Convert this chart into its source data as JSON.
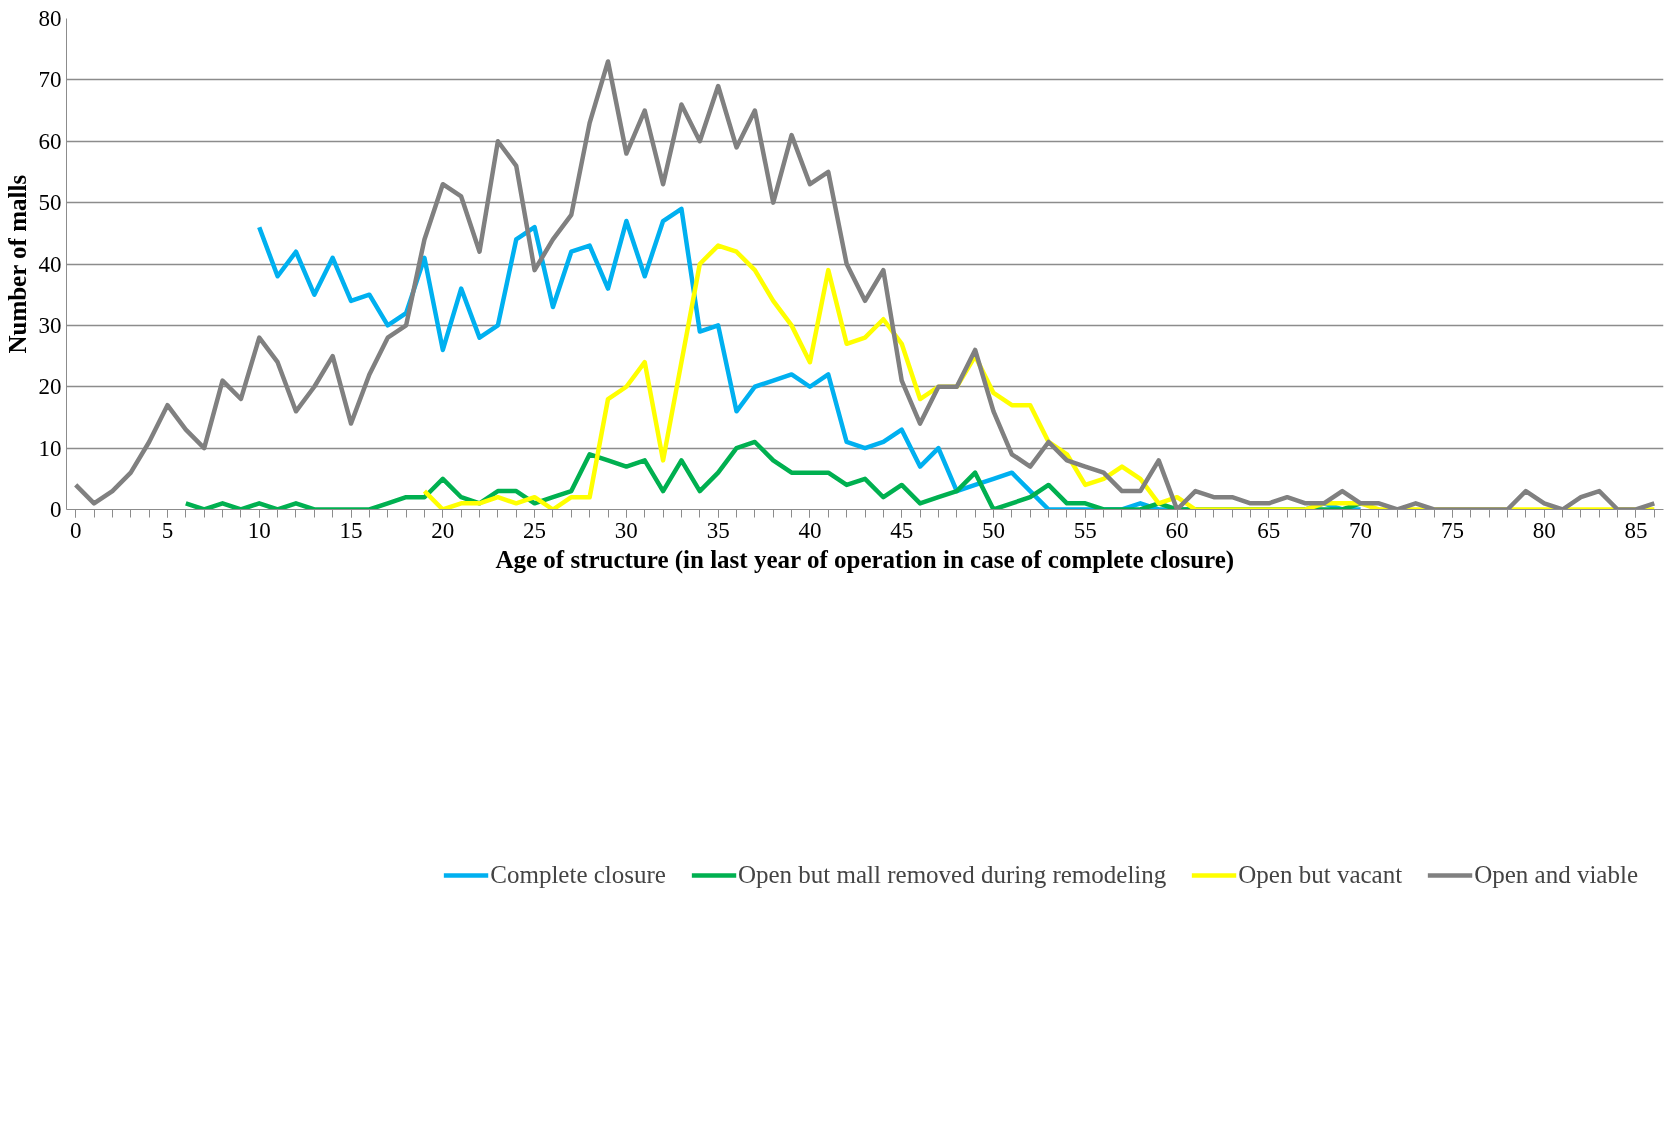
{
  "chart_data": {
    "type": "line",
    "xlabel": "Age of structure (in last year of operation in case of complete closure)",
    "ylabel": "Number of malls",
    "xlim": [
      -0.5,
      86.5
    ],
    "xticks": [
      0,
      5,
      10,
      15,
      20,
      25,
      30,
      35,
      40,
      45,
      50,
      55,
      60,
      65,
      70,
      75,
      80,
      85
    ],
    "ylim": [
      0,
      80
    ],
    "yticks": [
      0,
      10,
      20,
      30,
      40,
      50,
      60,
      70,
      80
    ],
    "grid": "y",
    "legend": "bottom",
    "marker": "none",
    "line_style": "solid",
    "series": [
      {
        "name": "Complete closure",
        "color": "#00b0f0",
        "x": [
          10,
          11,
          12,
          13,
          14,
          15,
          16,
          17,
          18,
          19,
          20,
          21,
          22,
          23,
          24,
          25,
          26,
          27,
          28,
          29,
          30,
          31,
          32,
          33,
          34,
          35,
          36,
          37,
          38,
          39,
          40,
          41,
          42,
          43,
          44,
          45,
          46,
          47,
          48,
          49,
          50,
          51,
          52,
          53,
          54,
          55,
          56,
          57,
          58,
          59,
          60,
          61,
          62,
          63,
          64,
          65,
          66,
          67,
          68,
          69,
          70
        ],
        "values": [
          46,
          38,
          42,
          35,
          41,
          34,
          35,
          30,
          32,
          41,
          26,
          36,
          28,
          30,
          44,
          46,
          33,
          42,
          43,
          36,
          47,
          38,
          47,
          49,
          29,
          30,
          16,
          20,
          21,
          22,
          20,
          22,
          11,
          10,
          11,
          13,
          7,
          10,
          3,
          4,
          5,
          6,
          3,
          0,
          0,
          0,
          0,
          0,
          1,
          0,
          0,
          0,
          0,
          0,
          0,
          0,
          0,
          0,
          1,
          0,
          0
        ]
      },
      {
        "name": "Open but mall removed during remodeling",
        "color": "#00b050",
        "x": [
          6,
          7,
          8,
          9,
          10,
          11,
          12,
          13,
          14,
          15,
          16,
          17,
          18,
          19,
          20,
          21,
          22,
          23,
          24,
          25,
          26,
          27,
          28,
          29,
          30,
          31,
          32,
          33,
          34,
          35,
          36,
          37,
          38,
          39,
          40,
          41,
          42,
          43,
          44,
          45,
          46,
          47,
          48,
          49,
          50,
          51,
          52,
          53,
          54,
          55,
          56,
          57,
          58,
          59,
          60,
          61,
          62,
          63,
          64,
          65,
          66,
          67,
          68,
          69,
          70
        ],
        "values": [
          1,
          0,
          1,
          0,
          1,
          0,
          1,
          0,
          0,
          0,
          0,
          1,
          2,
          2,
          5,
          2,
          1,
          3,
          3,
          1,
          2,
          3,
          9,
          8,
          7,
          8,
          3,
          8,
          3,
          6,
          10,
          11,
          8,
          6,
          6,
          6,
          4,
          5,
          2,
          4,
          1,
          2,
          3,
          6,
          0,
          1,
          2,
          4,
          1,
          1,
          0,
          0,
          0,
          1,
          0,
          0,
          0,
          0,
          0,
          0,
          0,
          0,
          0,
          0,
          1
        ]
      },
      {
        "name": "Open but vacant",
        "color": "#ffff00",
        "x": [
          19,
          20,
          21,
          22,
          23,
          24,
          25,
          26,
          27,
          28,
          29,
          30,
          31,
          32,
          33,
          34,
          35,
          36,
          37,
          38,
          39,
          40,
          41,
          42,
          43,
          44,
          45,
          46,
          47,
          48,
          49,
          50,
          51,
          52,
          53,
          54,
          55,
          56,
          57,
          58,
          59,
          60,
          61,
          62,
          63,
          64,
          65,
          66,
          67,
          68,
          69,
          70,
          71,
          72,
          73,
          74,
          75,
          76,
          77,
          78,
          79,
          80,
          81,
          82,
          83,
          84,
          85,
          86
        ],
        "values": [
          3,
          0,
          1,
          1,
          2,
          1,
          2,
          0,
          2,
          2,
          18,
          20,
          24,
          8,
          24,
          40,
          43,
          42,
          39,
          34,
          30,
          24,
          39,
          27,
          28,
          31,
          27,
          18,
          20,
          20,
          25,
          19,
          17,
          17,
          11,
          9,
          4,
          5,
          7,
          5,
          1,
          2,
          0,
          0,
          0,
          0,
          0,
          0,
          0,
          1,
          1,
          1,
          0,
          0,
          0,
          0,
          0,
          0,
          0,
          0,
          0,
          0,
          0,
          0,
          0,
          0,
          0,
          0
        ]
      },
      {
        "name": "Open and viable",
        "color": "#808080",
        "x": [
          0,
          1,
          2,
          3,
          4,
          5,
          6,
          7,
          8,
          9,
          10,
          11,
          12,
          13,
          14,
          15,
          16,
          17,
          18,
          19,
          20,
          21,
          22,
          23,
          24,
          25,
          26,
          27,
          28,
          29,
          30,
          31,
          32,
          33,
          34,
          35,
          36,
          37,
          38,
          39,
          40,
          41,
          42,
          43,
          44,
          45,
          46,
          47,
          48,
          49,
          50,
          51,
          52,
          53,
          54,
          55,
          56,
          57,
          58,
          59,
          60,
          61,
          62,
          63,
          64,
          65,
          66,
          67,
          68,
          69,
          70,
          71,
          72,
          73,
          74,
          75,
          76,
          77,
          78,
          79,
          80,
          81,
          82,
          83,
          84,
          85,
          86
        ],
        "values": [
          4,
          1,
          3,
          6,
          11,
          17,
          13,
          10,
          21,
          18,
          28,
          24,
          16,
          20,
          25,
          14,
          22,
          28,
          30,
          44,
          53,
          51,
          42,
          60,
          56,
          39,
          44,
          48,
          63,
          73,
          58,
          65,
          53,
          66,
          60,
          69,
          59,
          65,
          50,
          61,
          53,
          55,
          40,
          34,
          39,
          21,
          14,
          20,
          20,
          26,
          16,
          9,
          7,
          11,
          8,
          7,
          6,
          3,
          3,
          8,
          0,
          3,
          2,
          2,
          1,
          1,
          2,
          1,
          1,
          3,
          1,
          1,
          0,
          1,
          0,
          0,
          0,
          0,
          0,
          3,
          1,
          0,
          2,
          3,
          0,
          0,
          1
        ]
      }
    ]
  }
}
